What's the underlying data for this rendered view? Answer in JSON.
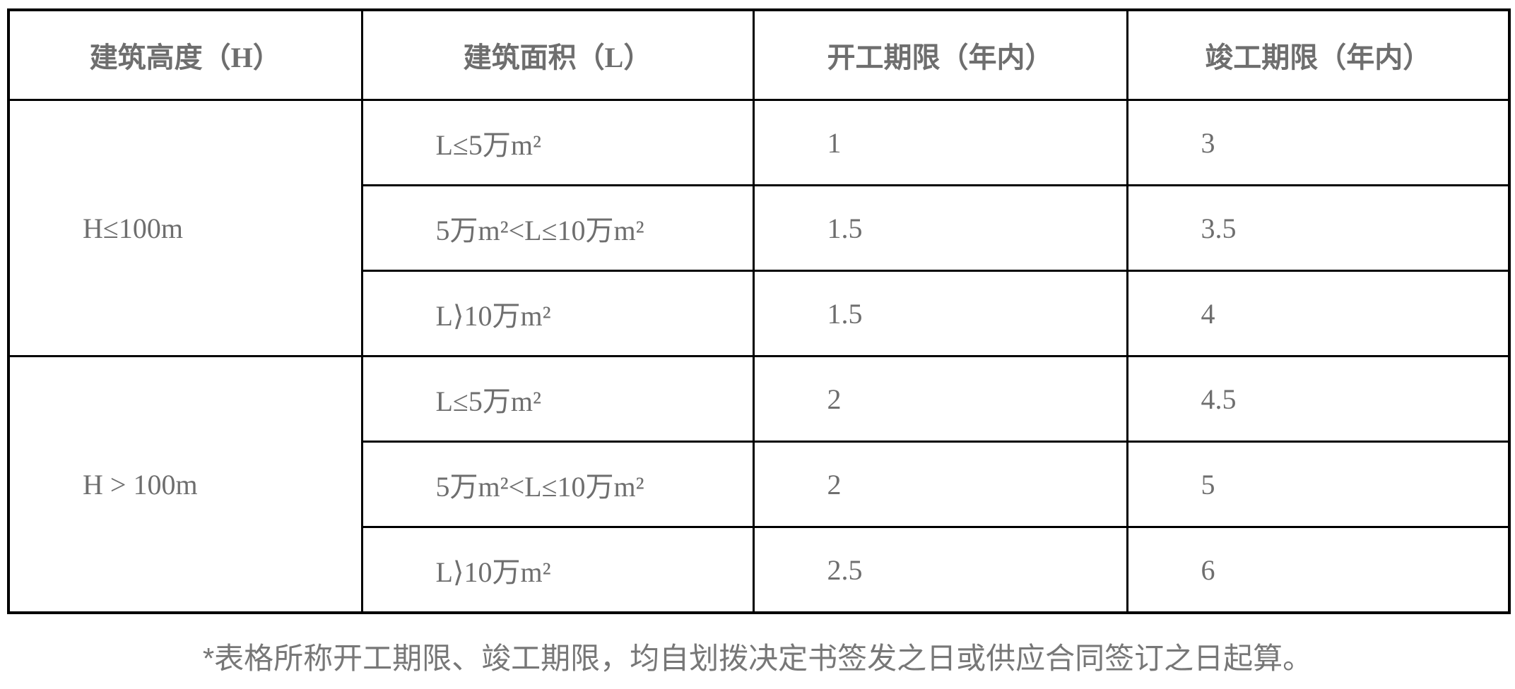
{
  "table": {
    "headers": [
      "建筑高度（H）",
      "建筑面积（L）",
      "开工期限（年内）",
      "竣工期限（年内）"
    ],
    "groups": [
      {
        "label": "H≤100m",
        "rows": [
          {
            "area": "L≤5万m²",
            "start": "1",
            "finish": "3"
          },
          {
            "area": "5万m²<L≤10万m²",
            "start": "1.5",
            "finish": "3.5"
          },
          {
            "area": "L⟩10万m²",
            "start": "1.5",
            "finish": "4"
          }
        ]
      },
      {
        "label": "H > 100m",
        "rows": [
          {
            "area": "L≤5万m²",
            "start": "2",
            "finish": "4.5"
          },
          {
            "area": "5万m²<L≤10万m²",
            "start": "2",
            "finish": "5"
          },
          {
            "area": "L⟩10万m²",
            "start": "2.5",
            "finish": "6"
          }
        ]
      }
    ],
    "footnote": "*表格所称开工期限、竣工期限，均自划拨决定书签发之日或供应合同签订之日起算。"
  },
  "colors": {
    "border": "#000000",
    "table_text": "#6e6e6e",
    "footnote_text": "#777777",
    "background": "#ffffff"
  }
}
